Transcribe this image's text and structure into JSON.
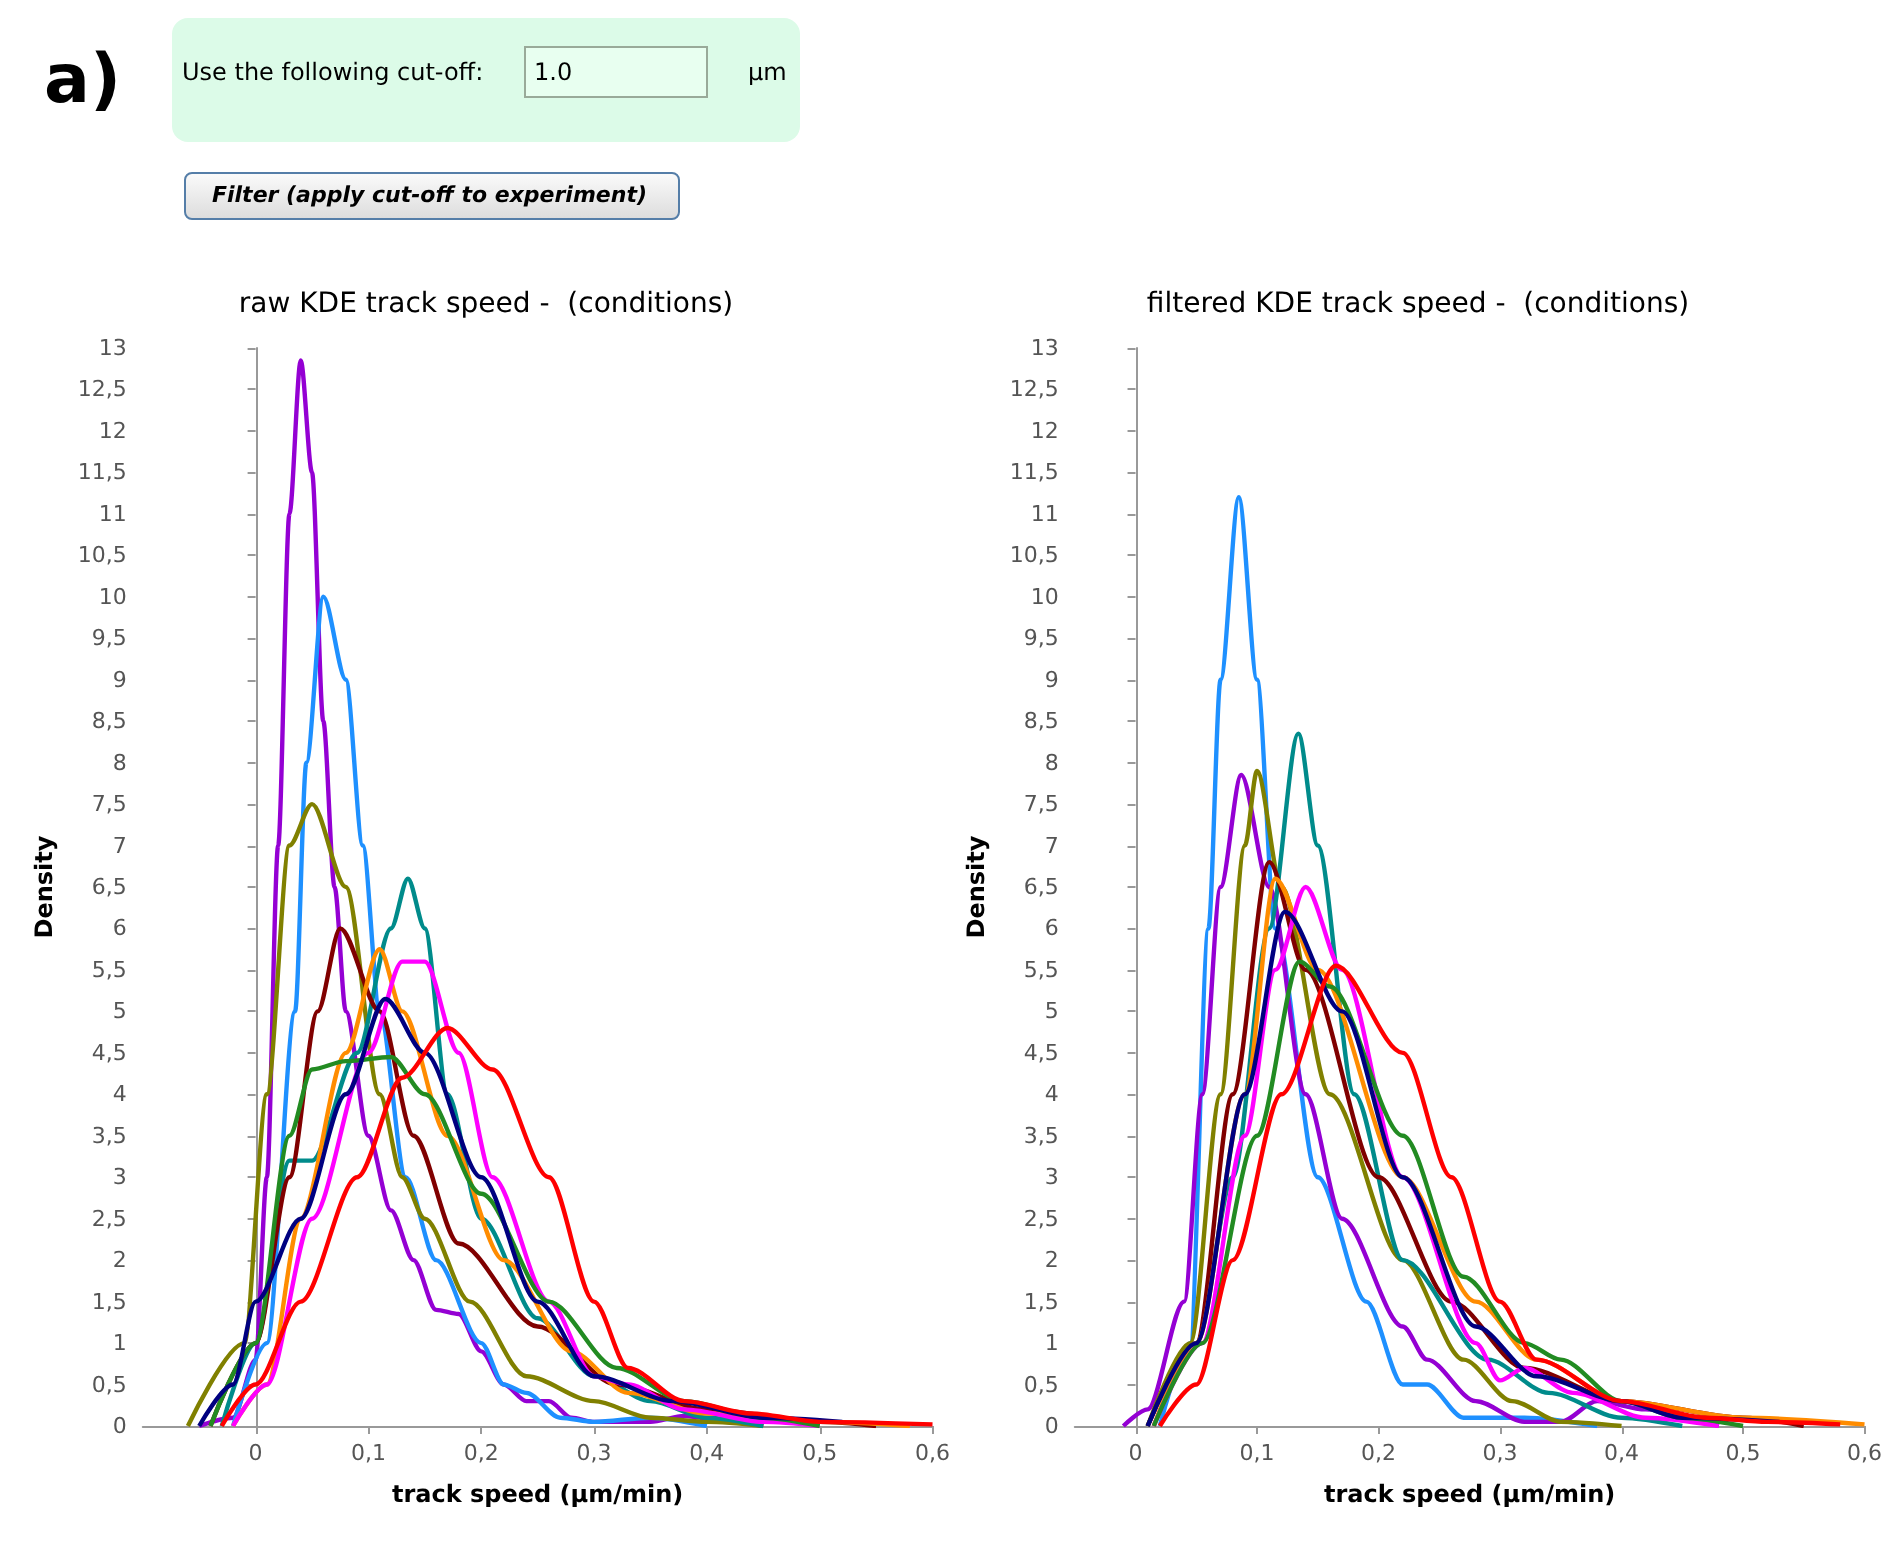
{
  "chart_data": [
    {
      "type": "other",
      "title": "a)",
      "annotations": [
        "Use the following cut-off:",
        "1.0",
        "µm",
        "Filter (apply cut-off to experiment)"
      ]
    },
    {
      "type": "line",
      "title": "raw KDE track speed -  (conditions)",
      "xlabel": "track speed (µm/min)",
      "ylabel": "Density",
      "xlim": [
        -0.1,
        0.6
      ],
      "xticks": [
        0,
        {
          "value": 0.1,
          "label": "0,1"
        },
        {
          "value": 0.2,
          "label": "0,2"
        },
        {
          "value": 0.3,
          "label": "0,3"
        },
        {
          "value": 0.4,
          "label": "0,4"
        },
        {
          "value": 0.5,
          "label": "0,5"
        },
        {
          "value": 0.6,
          "label": "0,6"
        }
      ],
      "ylim": [
        0,
        13
      ],
      "yticks": [
        0,
        {
          "value": 0.5,
          "label": "0,5"
        },
        1,
        {
          "value": 1.5,
          "label": "1,5"
        },
        2,
        {
          "value": 2.5,
          "label": "2,5"
        },
        3,
        {
          "value": 3.5,
          "label": "3,5"
        },
        4,
        {
          "value": 4.5,
          "label": "4,5"
        },
        5,
        {
          "value": 5.5,
          "label": "5,5"
        },
        6,
        {
          "value": 6.5,
          "label": "6,5"
        },
        7,
        {
          "value": 7.5,
          "label": "7,5"
        },
        8,
        {
          "value": 8.5,
          "label": "8,5"
        },
        9,
        {
          "value": 9.5,
          "label": "9,5"
        },
        10,
        {
          "value": 10.5,
          "label": "10,5"
        },
        11,
        {
          "value": 11.5,
          "label": "11,5"
        },
        12,
        {
          "value": 12.5,
          "label": "12,5"
        },
        13
      ],
      "series": [
        {
          "color": "#9400d3",
          "x": [
            -0.05,
            -0.02,
            0,
            0.01,
            0.02,
            0.03,
            0.04,
            0.05,
            0.06,
            0.07,
            0.08,
            0.1,
            0.12,
            0.14,
            0.16,
            0.18,
            0.2,
            0.22,
            0.24,
            0.26,
            0.28,
            0.3,
            0.35,
            0.38,
            0.42,
            0.45
          ],
          "values": [
            0,
            0.1,
            0.8,
            3,
            7,
            11,
            12.85,
            11.5,
            8.5,
            6.5,
            5,
            3.5,
            2.6,
            2,
            1.4,
            1.35,
            0.9,
            0.5,
            0.3,
            0.3,
            0.1,
            0.05,
            0.05,
            0.12,
            0.05,
            0
          ]
        },
        {
          "color": "#1e90ff",
          "x": [
            -0.02,
            0.01,
            0.035,
            0.045,
            0.06,
            0.08,
            0.095,
            0.11,
            0.133,
            0.16,
            0.2,
            0.22,
            0.24,
            0.27,
            0.3,
            0.35,
            0.4
          ],
          "values": [
            0,
            1,
            5,
            8,
            10,
            9,
            7,
            5,
            3,
            2,
            1,
            0.5,
            0.4,
            0.1,
            0.05,
            0.1,
            0
          ]
        },
        {
          "color": "#808000",
          "x": [
            -0.06,
            -0.01,
            0.01,
            0.03,
            0.05,
            0.08,
            0.11,
            0.13,
            0.15,
            0.19,
            0.24,
            0.3,
            0.35,
            0.4,
            0.45
          ],
          "values": [
            0,
            1,
            4,
            7,
            7.5,
            6.5,
            4,
            3,
            2.5,
            1.5,
            0.6,
            0.3,
            0.1,
            0.05,
            0
          ]
        },
        {
          "color": "#008b8b",
          "x": [
            -0.03,
            0,
            0.03,
            0.05,
            0.09,
            0.12,
            0.135,
            0.15,
            0.17,
            0.2,
            0.25,
            0.3,
            0.35,
            0.4,
            0.45
          ],
          "values": [
            0,
            1,
            3.2,
            3.2,
            4.5,
            6,
            6.6,
            6,
            4,
            2.5,
            1.3,
            0.6,
            0.3,
            0.1,
            0
          ]
        },
        {
          "color": "#800000",
          "x": [
            -0.04,
            0,
            0.03,
            0.055,
            0.075,
            0.11,
            0.14,
            0.18,
            0.25,
            0.32,
            0.4,
            0.5,
            0.55
          ],
          "values": [
            0,
            1,
            3,
            5,
            6,
            5,
            3.5,
            2.2,
            1.2,
            0.5,
            0.2,
            0.05,
            0
          ]
        },
        {
          "color": "#ff8c00",
          "x": [
            -0.02,
            0.01,
            0.04,
            0.08,
            0.11,
            0.13,
            0.17,
            0.22,
            0.28,
            0.33,
            0.4,
            0.5,
            0.58
          ],
          "values": [
            0,
            0.5,
            2.5,
            4.5,
            5.75,
            5,
            3.5,
            2,
            0.9,
            0.4,
            0.15,
            0.05,
            0
          ]
        },
        {
          "color": "#ff00ff",
          "x": [
            -0.02,
            0.01,
            0.05,
            0.1,
            0.13,
            0.15,
            0.18,
            0.21,
            0.26,
            0.3,
            0.33,
            0.38,
            0.45,
            0.5
          ],
          "values": [
            0,
            0.5,
            2.5,
            4.5,
            5.6,
            5.6,
            4.5,
            3,
            1.5,
            0.6,
            0.5,
            0.2,
            0.05,
            0
          ]
        },
        {
          "color": "#228b22",
          "x": [
            -0.04,
            0,
            0.03,
            0.05,
            0.08,
            0.12,
            0.15,
            0.2,
            0.26,
            0.32,
            0.38,
            0.45,
            0.5
          ],
          "values": [
            0,
            1,
            3.5,
            4.3,
            4.4,
            4.45,
            4,
            2.8,
            1.5,
            0.7,
            0.3,
            0.1,
            0
          ]
        },
        {
          "color": "#000080",
          "x": [
            -0.05,
            -0.02,
            0,
            0.04,
            0.08,
            0.115,
            0.15,
            0.2,
            0.25,
            0.3,
            0.37,
            0.45,
            0.52
          ],
          "values": [
            0,
            0.5,
            1.5,
            2.5,
            4,
            5.15,
            4.5,
            3,
            1.5,
            0.6,
            0.3,
            0.1,
            0.05
          ]
        },
        {
          "color": "#ff0000",
          "x": [
            -0.03,
            0,
            0.04,
            0.09,
            0.13,
            0.17,
            0.21,
            0.26,
            0.3,
            0.33,
            0.38,
            0.44,
            0.5,
            0.6
          ],
          "values": [
            0,
            0.5,
            1.5,
            3,
            4.2,
            4.8,
            4.3,
            3,
            1.5,
            0.7,
            0.3,
            0.15,
            0.05,
            0.02
          ]
        }
      ]
    },
    {
      "type": "line",
      "title": "filtered KDE track speed -  (conditions)",
      "xlabel": "track speed (µm/min)",
      "ylabel": "Density",
      "xlim": [
        -0.05,
        0.6
      ],
      "xticks": [
        0,
        {
          "value": 0.1,
          "label": "0,1"
        },
        {
          "value": 0.2,
          "label": "0,2"
        },
        {
          "value": 0.3,
          "label": "0,3"
        },
        {
          "value": 0.4,
          "label": "0,4"
        },
        {
          "value": 0.5,
          "label": "0,5"
        },
        {
          "value": 0.6,
          "label": "0,6"
        }
      ],
      "ylim": [
        0,
        13
      ],
      "yticks": [
        0,
        {
          "value": 0.5,
          "label": "0,5"
        },
        1,
        {
          "value": 1.5,
          "label": "1,5"
        },
        2,
        {
          "value": 2.5,
          "label": "2,5"
        },
        3,
        {
          "value": 3.5,
          "label": "3,5"
        },
        4,
        {
          "value": 4.5,
          "label": "4,5"
        },
        5,
        {
          "value": 5.5,
          "label": "5,5"
        },
        6,
        {
          "value": 6.5,
          "label": "6,5"
        },
        7,
        {
          "value": 7.5,
          "label": "7,5"
        },
        8,
        {
          "value": 8.5,
          "label": "8,5"
        },
        9,
        {
          "value": 9.5,
          "label": "9,5"
        },
        10,
        {
          "value": 10.5,
          "label": "10,5"
        },
        11,
        {
          "value": 11.5,
          "label": "11,5"
        },
        12,
        {
          "value": 12.5,
          "label": "12,5"
        },
        13
      ],
      "series": [
        {
          "color": "#1e90ff",
          "x": [
            0.02,
            0.045,
            0.06,
            0.07,
            0.085,
            0.1,
            0.115,
            0.15,
            0.19,
            0.22,
            0.24,
            0.27,
            0.32,
            0.38
          ],
          "values": [
            0,
            1,
            6,
            9,
            11.2,
            9,
            6,
            3,
            1.5,
            0.5,
            0.5,
            0.1,
            0.1,
            0
          ]
        },
        {
          "color": "#9400d3",
          "x": [
            -0.01,
            0.01,
            0.04,
            0.055,
            0.07,
            0.087,
            0.11,
            0.14,
            0.17,
            0.22,
            0.24,
            0.28,
            0.32,
            0.35,
            0.38,
            0.42,
            0.48
          ],
          "values": [
            0,
            0.2,
            1.5,
            4,
            6.5,
            7.85,
            6.5,
            4,
            2.5,
            1.2,
            0.8,
            0.3,
            0.05,
            0.05,
            0.3,
            0.2,
            0
          ]
        },
        {
          "color": "#808000",
          "x": [
            0.01,
            0.045,
            0.07,
            0.09,
            0.1,
            0.12,
            0.16,
            0.22,
            0.27,
            0.31,
            0.35,
            0.4
          ],
          "values": [
            0,
            1,
            4,
            7,
            7.9,
            6.5,
            4,
            2,
            0.8,
            0.3,
            0.05,
            0
          ]
        },
        {
          "color": "#008b8b",
          "x": [
            0.01,
            0.05,
            0.08,
            0.11,
            0.134,
            0.15,
            0.18,
            0.22,
            0.29,
            0.34,
            0.4,
            0.45
          ],
          "values": [
            0,
            1,
            3,
            6,
            8.35,
            7,
            4,
            2,
            0.8,
            0.4,
            0.1,
            0
          ]
        },
        {
          "color": "#800000",
          "x": [
            0.01,
            0.05,
            0.08,
            0.11,
            0.14,
            0.2,
            0.26,
            0.32,
            0.4,
            0.5,
            0.55
          ],
          "values": [
            0,
            1,
            4,
            6.8,
            5.5,
            3,
            1.5,
            0.7,
            0.3,
            0.1,
            0
          ]
        },
        {
          "color": "#ff8c00",
          "x": [
            0.015,
            0.05,
            0.09,
            0.115,
            0.15,
            0.22,
            0.28,
            0.33,
            0.4,
            0.5,
            0.6
          ],
          "values": [
            0,
            1,
            4,
            6.6,
            5.5,
            3,
            1.5,
            0.8,
            0.3,
            0.1,
            0.02
          ]
        },
        {
          "color": "#ff00ff",
          "x": [
            0.015,
            0.055,
            0.09,
            0.115,
            0.14,
            0.17,
            0.22,
            0.28,
            0.3,
            0.32,
            0.36,
            0.42,
            0.48
          ],
          "values": [
            0,
            1,
            3.5,
            5.5,
            6.5,
            5.5,
            3,
            1,
            0.55,
            0.7,
            0.4,
            0.1,
            0
          ]
        },
        {
          "color": "#228b22",
          "x": [
            0.015,
            0.055,
            0.1,
            0.135,
            0.16,
            0.22,
            0.27,
            0.32,
            0.35,
            0.4,
            0.45,
            0.5
          ],
          "values": [
            0,
            1,
            3.5,
            5.6,
            5.3,
            3.5,
            1.8,
            1,
            0.8,
            0.3,
            0.1,
            0
          ]
        },
        {
          "color": "#000080",
          "x": [
            0.01,
            0.05,
            0.09,
            0.123,
            0.17,
            0.22,
            0.28,
            0.33,
            0.4,
            0.45,
            0.53
          ],
          "values": [
            0,
            1,
            4,
            6.2,
            5,
            3,
            1.2,
            0.6,
            0.3,
            0.1,
            0.05
          ]
        },
        {
          "color": "#ff0000",
          "x": [
            0.02,
            0.05,
            0.08,
            0.12,
            0.165,
            0.22,
            0.26,
            0.3,
            0.33,
            0.4,
            0.47,
            0.52,
            0.58
          ],
          "values": [
            0,
            0.5,
            2,
            4,
            5.55,
            4.5,
            3,
            1.5,
            0.8,
            0.3,
            0.1,
            0.05,
            0.02
          ]
        }
      ]
    }
  ]
}
